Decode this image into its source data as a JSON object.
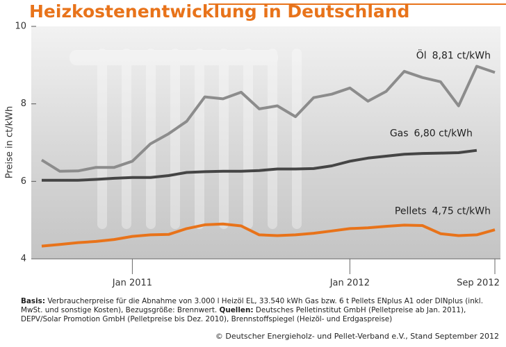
{
  "chart_data": {
    "type": "line",
    "title": "Heizkostenentwicklung in Deutschland",
    "y_label": "Preise in ct/kWh",
    "categories": [
      null,
      null,
      null,
      null,
      null,
      "Jan 2011",
      null,
      null,
      null,
      null,
      null,
      null,
      null,
      null,
      null,
      null,
      null,
      "Jan 2012",
      null,
      null,
      null,
      null,
      null,
      null,
      null,
      "Sep 2012"
    ],
    "ylim": [
      4,
      10
    ],
    "yticks": [
      4,
      6,
      8,
      10
    ],
    "series": [
      {
        "name": "Öl",
        "color": "#8c8c8c",
        "values": [
          6.55,
          6.26,
          6.27,
          6.36,
          6.36,
          6.52,
          6.97,
          7.23,
          7.55,
          8.18,
          8.13,
          8.3,
          7.87,
          7.95,
          7.67,
          8.16,
          8.25,
          8.41,
          8.07,
          8.32,
          8.84,
          8.68,
          8.57,
          7.95,
          8.97,
          8.81
        ],
        "value_labels": [
          null,
          null,
          null,
          null,
          null,
          null,
          null,
          null,
          null,
          null,
          null,
          null,
          null,
          null,
          null,
          null,
          null,
          null,
          null,
          null,
          null,
          null,
          null,
          null,
          null,
          "8,81 ct/kWh"
        ]
      },
      {
        "name": "Gas",
        "color": "#454545",
        "values": [
          6.03,
          6.03,
          6.03,
          6.05,
          6.08,
          6.1,
          6.1,
          6.15,
          6.23,
          6.25,
          6.26,
          6.26,
          6.28,
          6.32,
          6.32,
          6.33,
          6.4,
          6.52,
          6.6,
          6.65,
          6.7,
          6.72,
          6.73,
          6.74,
          6.8,
          null
        ],
        "value_labels": [
          null,
          null,
          null,
          null,
          null,
          null,
          null,
          null,
          null,
          null,
          null,
          null,
          null,
          null,
          null,
          null,
          null,
          null,
          null,
          null,
          null,
          null,
          null,
          null,
          "6,80 ct/kWh",
          null
        ]
      },
      {
        "name": "Pellets",
        "color": "#e8731a",
        "values": [
          4.33,
          4.37,
          4.42,
          4.45,
          4.5,
          4.58,
          4.62,
          4.63,
          4.78,
          4.88,
          4.9,
          4.85,
          4.62,
          4.6,
          4.62,
          4.66,
          4.72,
          4.78,
          4.8,
          4.84,
          4.87,
          4.86,
          4.65,
          4.6,
          4.62,
          4.75
        ],
        "value_labels": [
          null,
          null,
          null,
          null,
          null,
          null,
          null,
          null,
          null,
          null,
          null,
          null,
          null,
          null,
          null,
          null,
          null,
          null,
          null,
          null,
          null,
          null,
          null,
          null,
          null,
          "4,75 ct/kWh"
        ]
      }
    ],
    "footnote": {
      "basis_label": "Basis:",
      "basis_text": "Verbraucherpreise für die Abnahme von 3.000 l Heizöl EL, 33.540 kWh Gas bzw. 6 t Pellets ENplus A1 oder DINplus (inkl. MwSt. und sonstige Kosten), Bezugsgröße: Brennwert.",
      "sources_label": "Quellen:",
      "sources_text": "Deutsches Pelletinstitut GmbH (Pelletpreise ab Jan. 2011), DEPV/Solar Promotion GmbH (Pelletpreise bis Dez. 2010), Brennstoffspiegel (Heizöl- und Erdgaspreise)"
    },
    "credit": "© Deutscher Energieholz- und Pellet-Verband e.V., Stand September 2012"
  }
}
